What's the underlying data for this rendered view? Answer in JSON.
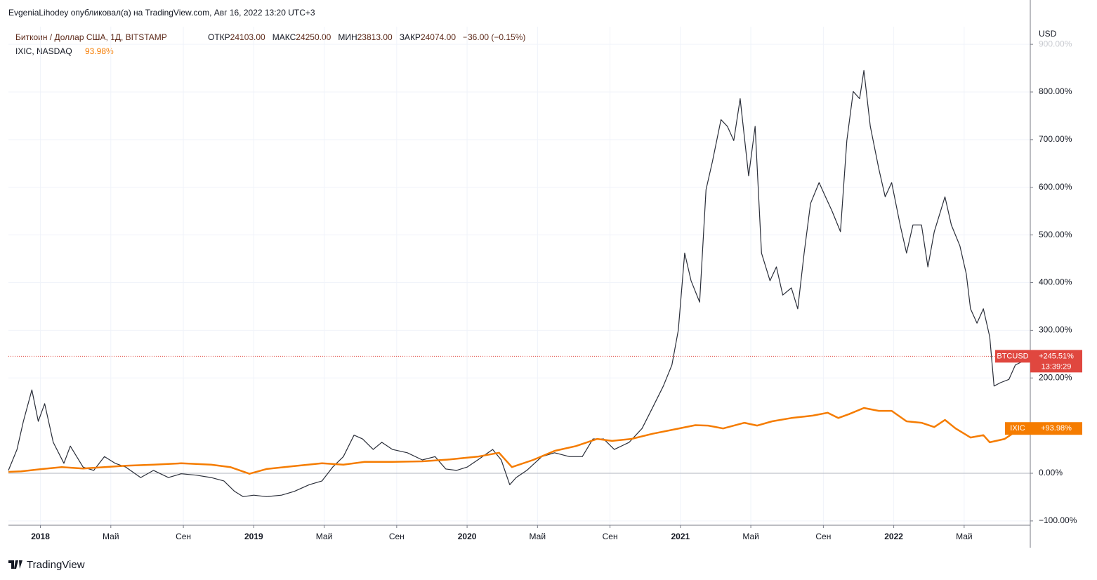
{
  "header": {
    "author_line": "EvgeniaLihodey опубликовал(а) на TradingView.com, Авг 16, 2022 13:20 UTC+3",
    "symbol": "Биткоин / Доллар США, 1Д, BITSTAMP",
    "ohlc": [
      {
        "label": "ОТКР",
        "value": "24103.00"
      },
      {
        "label": "МАКС",
        "value": "24250.00"
      },
      {
        "label": "МИН",
        "value": "23813.00"
      },
      {
        "label": "ЗАКР",
        "value": "24074.00"
      }
    ],
    "change": "−36.00 (−0.15%)",
    "compare": "IXIC, NASDAQ",
    "compare_value": "93.98%",
    "currency": "USD",
    "time_left": "13:39:29",
    "logo": "TradingView"
  },
  "chart_data": {
    "type": "line",
    "xlim": [
      2017.85,
      2022.64
    ],
    "xticks": [
      2018,
      {
        "value": 2018.33,
        "label": "Май"
      },
      {
        "value": 2018.67,
        "label": "Сен"
      },
      2019,
      {
        "value": 2019.33,
        "label": "Май"
      },
      {
        "value": 2019.67,
        "label": "Сен"
      },
      2020,
      {
        "value": 2020.33,
        "label": "Май"
      },
      {
        "value": 2020.67,
        "label": "Сен"
      },
      2021,
      {
        "value": 2021.33,
        "label": "Май"
      },
      {
        "value": 2021.67,
        "label": "Сен"
      },
      2022,
      {
        "value": 2022.33,
        "label": "Май"
      }
    ],
    "ylim": [
      -109,
      937
    ],
    "yticks": [
      {
        "value": -100,
        "label": "−100.00%"
      },
      {
        "value": 0,
        "label": "0.00%"
      },
      {
        "value": 200,
        "label": "200.00%"
      },
      {
        "value": 300,
        "label": "300.00%"
      },
      {
        "value": 400,
        "label": "400.00%"
      },
      {
        "value": 500,
        "label": "500.00%"
      },
      {
        "value": 600,
        "label": "600.00%"
      },
      {
        "value": 700,
        "label": "700.00%"
      },
      {
        "value": 800,
        "label": "800.00%"
      },
      {
        "value": 900,
        "label": "900.00%"
      }
    ],
    "grid": true,
    "series": [
      {
        "name": "BTCUSD",
        "color": "#2a2e39",
        "width": 1.2,
        "x": [
          2017.85,
          2017.89,
          2017.92,
          2017.96,
          2017.99,
          2018.02,
          2018.06,
          2018.11,
          2018.14,
          2018.2,
          2018.25,
          2018.3,
          2018.35,
          2018.4,
          2018.47,
          2018.53,
          2018.6,
          2018.66,
          2018.73,
          2018.8,
          2018.86,
          2018.91,
          2018.95,
          2019.0,
          2019.06,
          2019.13,
          2019.19,
          2019.26,
          2019.32,
          2019.37,
          2019.42,
          2019.47,
          2019.51,
          2019.56,
          2019.6,
          2019.65,
          2019.72,
          2019.79,
          2019.85,
          2019.9,
          2019.95,
          2020.0,
          2020.05,
          2020.12,
          2020.16,
          2020.2,
          2020.23,
          2020.28,
          2020.35,
          2020.41,
          2020.48,
          2020.54,
          2020.59,
          2020.64,
          2020.69,
          2020.76,
          2020.82,
          2020.87,
          2020.92,
          2020.96,
          2020.99,
          2021.02,
          2021.05,
          2021.09,
          2021.12,
          2021.15,
          2021.19,
          2021.22,
          2021.25,
          2021.28,
          2021.32,
          2021.35,
          2021.38,
          2021.42,
          2021.45,
          2021.48,
          2021.52,
          2021.55,
          2021.58,
          2021.61,
          2021.65,
          2021.68,
          2021.71,
          2021.75,
          2021.78,
          2021.81,
          2021.84,
          2021.86,
          2021.89,
          2021.93,
          2021.96,
          2021.99,
          2022.03,
          2022.06,
          2022.09,
          2022.13,
          2022.16,
          2022.19,
          2022.24,
          2022.27,
          2022.31,
          2022.34,
          2022.36,
          2022.39,
          2022.42,
          2022.45,
          2022.47,
          2022.5,
          2022.54,
          2022.57,
          2022.6,
          2022.63
        ],
        "values": [
          6,
          50,
          109,
          175,
          109,
          146,
          65,
          21,
          57,
          13,
          6,
          35,
          21,
          13,
          -9,
          6,
          -9,
          -1,
          -4,
          -9,
          -16,
          -38,
          -49,
          -46,
          -49,
          -46,
          -38,
          -24,
          -16,
          13,
          35,
          80,
          72,
          50,
          65,
          50,
          43,
          28,
          35,
          9,
          6,
          13,
          28,
          50,
          28,
          -24,
          -9,
          6,
          35,
          43,
          35,
          35,
          72,
          72,
          50,
          65,
          94,
          138,
          183,
          227,
          300,
          462,
          404,
          359,
          595,
          654,
          742,
          728,
          698,
          786,
          624,
          728,
          462,
          404,
          433,
          374,
          389,
          345,
          462,
          566,
          610,
          580,
          551,
          507,
          698,
          801,
          786,
          845,
          728,
          639,
          580,
          610,
          521,
          462,
          521,
          521,
          433,
          507,
          580,
          521,
          477,
          418,
          345,
          315,
          345,
          286,
          183,
          190,
          197,
          227,
          234,
          245.51
        ],
        "last_label": "+245.51%",
        "label_color": "#e0473f"
      },
      {
        "name": "IXIC",
        "color": "#f57c00",
        "width": 2.5,
        "x": [
          2017.85,
          2017.91,
          2018.01,
          2018.1,
          2018.2,
          2018.3,
          2018.4,
          2018.53,
          2018.66,
          2018.8,
          2018.89,
          2018.98,
          2019.06,
          2019.19,
          2019.32,
          2019.42,
          2019.52,
          2019.65,
          2019.79,
          2019.92,
          2020.05,
          2020.15,
          2020.21,
          2020.31,
          2020.41,
          2020.51,
          2020.61,
          2020.68,
          2020.77,
          2020.87,
          2020.97,
          2021.07,
          2021.13,
          2021.2,
          2021.3,
          2021.36,
          2021.43,
          2021.52,
          2021.62,
          2021.69,
          2021.74,
          2021.79,
          2021.86,
          2021.93,
          2021.99,
          2022.06,
          2022.13,
          2022.19,
          2022.24,
          2022.29,
          2022.36,
          2022.42,
          2022.45,
          2022.52,
          2022.57,
          2022.63
        ],
        "values": [
          3,
          4,
          9,
          13,
          10,
          13,
          16,
          18,
          21,
          18,
          13,
          -1,
          9,
          15,
          21,
          18,
          24,
          24,
          25,
          29,
          35,
          43,
          13,
          28,
          47,
          57,
          72,
          68,
          72,
          83,
          92,
          101,
          100,
          94,
          106,
          100,
          109,
          116,
          121,
          127,
          116,
          124,
          137,
          131,
          131,
          109,
          106,
          97,
          112,
          94,
          75,
          80,
          65,
          72,
          87,
          93.98
        ],
        "last_label": "+93.98%",
        "label_color": "#f57c00"
      }
    ]
  }
}
